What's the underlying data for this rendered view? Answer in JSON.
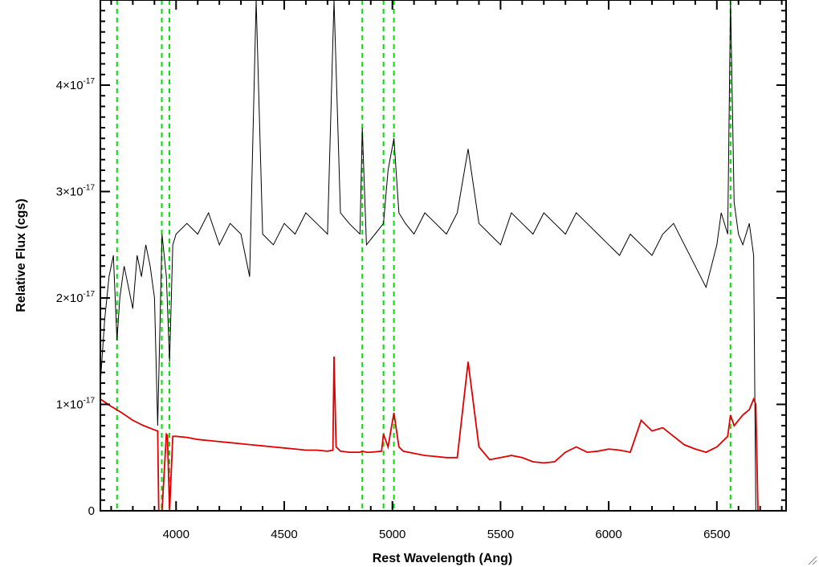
{
  "chart_data": {
    "type": "line",
    "title": "",
    "xlabel": "Rest Wavelength (Ang)",
    "ylabel": "Relative Flux (cgs)",
    "xlim": [
      3650,
      6820
    ],
    "ylim": [
      0,
      4.8
    ],
    "y_scale_exponent": -17,
    "x_ticks": [
      4000,
      4500,
      5000,
      5500,
      6000,
      6500
    ],
    "y_ticks": [
      {
        "value": 0,
        "label": "0"
      },
      {
        "value": 1,
        "mantissa": "1",
        "label": "1×10-17"
      },
      {
        "value": 2,
        "mantissa": "2",
        "label": "2×10-17"
      },
      {
        "value": 3,
        "mantissa": "3",
        "label": "3×10-17"
      },
      {
        "value": 4,
        "mantissa": "4",
        "label": "4×10-17"
      }
    ],
    "colors": {
      "observed": "#000000",
      "model": "#e00000",
      "lines": "#00dd00"
    },
    "vertical_lines": [
      3727,
      3934,
      3969,
      4861,
      4959,
      5007,
      6563
    ],
    "series": [
      {
        "color": "#000000",
        "x": [
          3650,
          3670,
          3690,
          3710,
          3727,
          3740,
          3760,
          3780,
          3800,
          3820,
          3840,
          3860,
          3880,
          3900,
          3915,
          3935,
          3955,
          3970,
          3985,
          4000,
          4050,
          4100,
          4150,
          4200,
          4250,
          4300,
          4340,
          4370,
          4400,
          4450,
          4500,
          4550,
          4600,
          4650,
          4700,
          4730,
          4760,
          4800,
          4850,
          4861,
          4880,
          4920,
          4959,
          4980,
          5007,
          5030,
          5060,
          5100,
          5150,
          5200,
          5250,
          5300,
          5350,
          5400,
          5450,
          5500,
          5550,
          5600,
          5650,
          5700,
          5750,
          5800,
          5850,
          5900,
          5950,
          6000,
          6050,
          6100,
          6150,
          6200,
          6250,
          6300,
          6350,
          6400,
          6450,
          6500,
          6520,
          6550,
          6563,
          6580,
          6600,
          6620,
          6650,
          6670,
          6680
        ],
        "y": [
          1.2,
          1.8,
          2.2,
          2.4,
          1.6,
          2.0,
          2.3,
          2.1,
          1.9,
          2.4,
          2.2,
          2.5,
          2.3,
          2.0,
          0.8,
          2.6,
          2.2,
          1.4,
          2.5,
          2.6,
          2.7,
          2.6,
          2.8,
          2.5,
          2.7,
          2.6,
          2.2,
          4.8,
          2.6,
          2.5,
          2.7,
          2.6,
          2.8,
          2.7,
          2.6,
          4.8,
          2.8,
          2.7,
          2.6,
          3.6,
          2.5,
          2.6,
          2.7,
          3.2,
          3.5,
          2.8,
          2.7,
          2.6,
          2.8,
          2.7,
          2.6,
          2.8,
          3.4,
          2.7,
          2.6,
          2.5,
          2.8,
          2.7,
          2.6,
          2.8,
          2.7,
          2.6,
          2.8,
          2.7,
          2.6,
          2.5,
          2.4,
          2.6,
          2.5,
          2.4,
          2.6,
          2.7,
          2.5,
          2.3,
          2.1,
          2.5,
          2.8,
          2.6,
          4.8,
          2.9,
          2.6,
          2.5,
          2.7,
          2.4,
          0.0
        ]
      },
      {
        "color": "#e00000",
        "x": [
          3650,
          3700,
          3750,
          3800,
          3850,
          3900,
          3915,
          3920,
          3935,
          3955,
          3960,
          3970,
          3985,
          4000,
          4050,
          4100,
          4150,
          4200,
          4250,
          4300,
          4350,
          4400,
          4450,
          4500,
          4550,
          4600,
          4650,
          4700,
          4725,
          4730,
          4740,
          4760,
          4800,
          4850,
          4861,
          4880,
          4900,
          4950,
          4959,
          4980,
          5007,
          5030,
          5050,
          5100,
          5150,
          5200,
          5250,
          5300,
          5350,
          5400,
          5450,
          5500,
          5550,
          5600,
          5650,
          5700,
          5750,
          5800,
          5850,
          5900,
          5950,
          6000,
          6050,
          6100,
          6150,
          6200,
          6250,
          6300,
          6350,
          6400,
          6450,
          6500,
          6550,
          6563,
          6580,
          6600,
          6620,
          6650,
          6670,
          6680,
          6690,
          6700,
          6820
        ],
        "y": [
          1.05,
          0.98,
          0.92,
          0.85,
          0.8,
          0.76,
          0.75,
          0.0,
          0.0,
          0.72,
          0.71,
          0.0,
          0.7,
          0.7,
          0.69,
          0.67,
          0.66,
          0.65,
          0.64,
          0.63,
          0.62,
          0.61,
          0.6,
          0.59,
          0.58,
          0.57,
          0.57,
          0.56,
          0.57,
          1.45,
          0.6,
          0.56,
          0.55,
          0.55,
          0.56,
          0.55,
          0.55,
          0.56,
          0.72,
          0.6,
          0.92,
          0.6,
          0.56,
          0.54,
          0.52,
          0.51,
          0.5,
          0.5,
          1.4,
          0.6,
          0.48,
          0.5,
          0.52,
          0.5,
          0.46,
          0.45,
          0.46,
          0.55,
          0.6,
          0.55,
          0.56,
          0.58,
          0.57,
          0.55,
          0.85,
          0.75,
          0.78,
          0.7,
          0.62,
          0.58,
          0.55,
          0.6,
          0.7,
          0.9,
          0.8,
          0.85,
          0.9,
          0.95,
          1.05,
          1.0,
          0.0,
          0.0,
          0.0
        ]
      }
    ]
  }
}
